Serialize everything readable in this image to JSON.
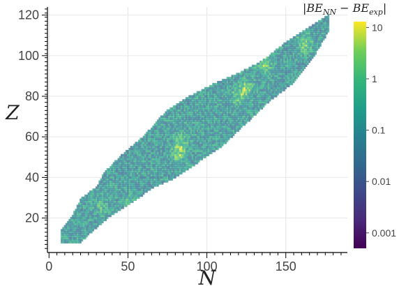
{
  "chart_data": {
    "type": "heatmap",
    "title": "",
    "xlabel": "N",
    "ylabel": "Z",
    "xlim": [
      -1,
      189
    ],
    "ylim": [
      3,
      124
    ],
    "x_ticks": [
      0,
      50,
      100,
      150
    ],
    "y_ticks": [
      20,
      40,
      60,
      80,
      100,
      120
    ],
    "grid": true,
    "colorbar": {
      "title": "|BE_NN − BE_exp|",
      "colormap": "viridis",
      "scale": "log",
      "range": [
        0.0005,
        13
      ],
      "ticks": [
        10,
        1,
        0.1,
        0.01,
        0.001
      ],
      "tick_labels": [
        "10",
        "1",
        "0.1",
        "0.01",
        "0.001"
      ]
    },
    "region_boundary": {
      "description": "Chart of nuclides: each (N, Z) nucleus with measured binding energy is a colored cell",
      "upper_edge": [
        [
          8,
          14
        ],
        [
          15,
          21
        ],
        [
          20,
          29
        ],
        [
          30,
          35
        ],
        [
          35,
          42
        ],
        [
          45,
          50
        ],
        [
          60,
          60
        ],
        [
          75,
          73
        ],
        [
          90,
          80
        ],
        [
          105,
          86
        ],
        [
          120,
          91
        ],
        [
          135,
          97
        ],
        [
          148,
          105
        ],
        [
          160,
          111
        ],
        [
          170,
          116
        ],
        [
          177,
          120
        ]
      ],
      "lower_edge": [
        [
          8,
          8
        ],
        [
          20,
          8
        ],
        [
          28,
          14
        ],
        [
          40,
          22
        ],
        [
          55,
          29
        ],
        [
          65,
          35
        ],
        [
          80,
          40
        ],
        [
          95,
          48
        ],
        [
          110,
          56
        ],
        [
          125,
          67
        ],
        [
          140,
          78
        ],
        [
          155,
          87
        ],
        [
          168,
          100
        ],
        [
          177,
          112
        ]
      ]
    },
    "hotspots": [
      {
        "N": 82,
        "Z": 52,
        "value": 3.5
      },
      {
        "N": 84,
        "Z": 58,
        "value": 1.5
      },
      {
        "N": 120,
        "Z": 80,
        "value": 1.2
      },
      {
        "N": 125,
        "Z": 84,
        "value": 2.5
      },
      {
        "N": 137,
        "Z": 95,
        "value": 2.0
      },
      {
        "N": 162,
        "Z": 106,
        "value": 3.0
      },
      {
        "N": 33,
        "Z": 26,
        "value": 0.8
      },
      {
        "N": 50,
        "Z": 28,
        "value": 0.4
      }
    ],
    "background_value": 0.12,
    "background_spread_log10": 0.9
  }
}
